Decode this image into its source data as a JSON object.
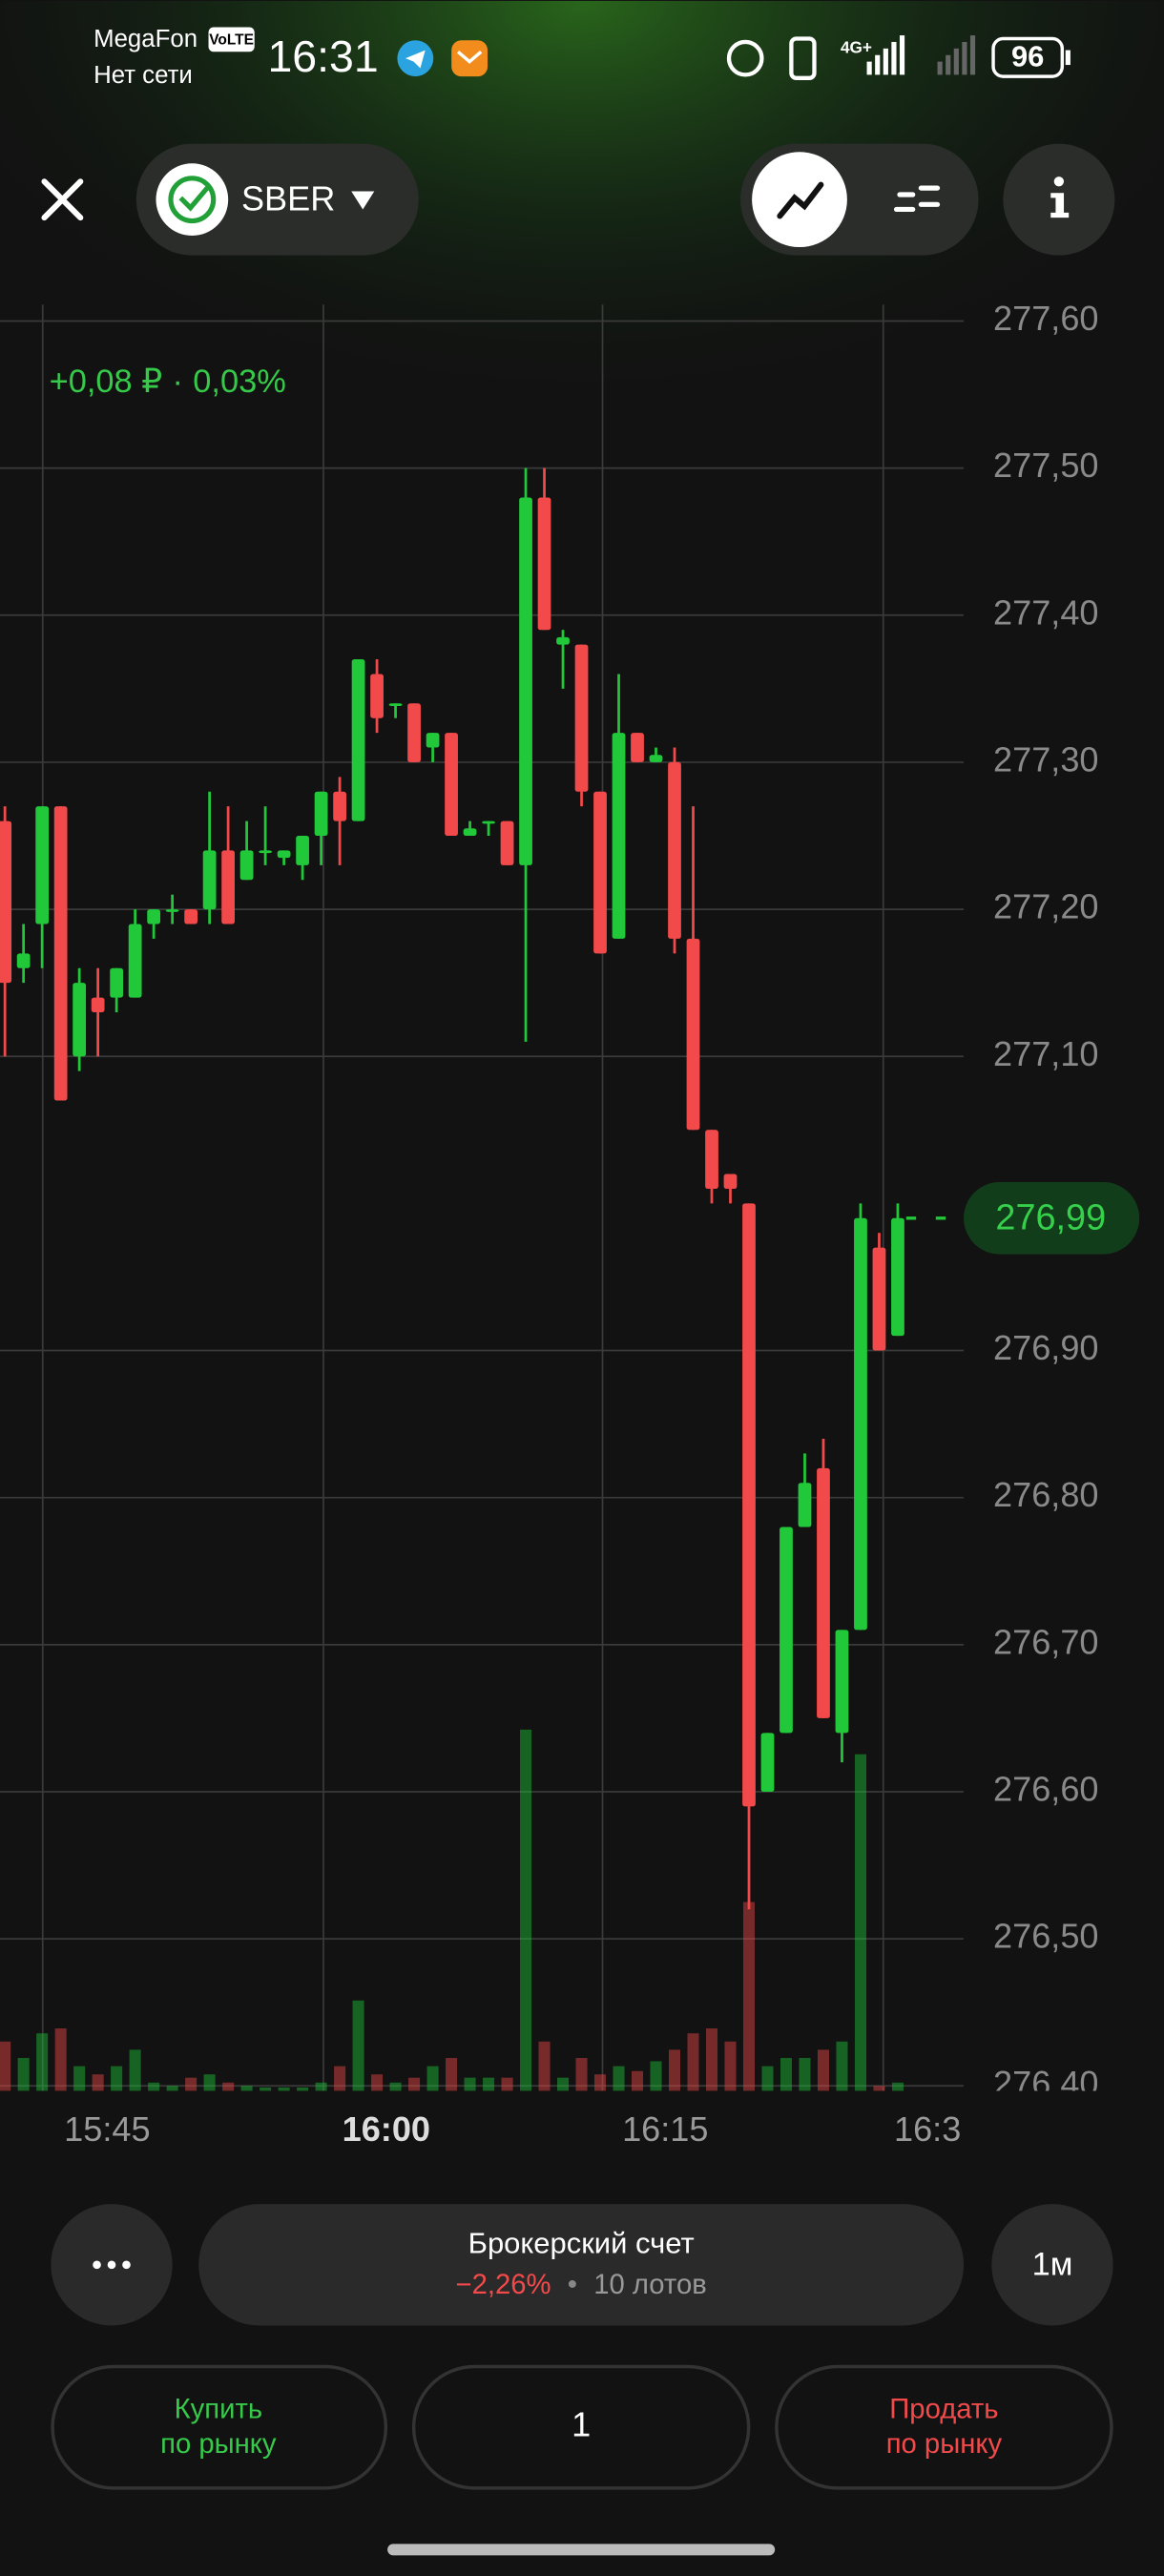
{
  "status_bar": {
    "carrier": "MegaFon",
    "volte": "VoLTE",
    "network": "Нет сети",
    "time": "16:31",
    "signal": "4G+",
    "battery": "96"
  },
  "header": {
    "ticker": "SBER"
  },
  "chart": {
    "type": "candlestick",
    "change_abs": "+0,08 ₽",
    "separator": "·",
    "change_pct": "0,03%",
    "up_color": "#20c83a",
    "down_color": "#f24a4a",
    "open": [
      277.26,
      277.16,
      277.19,
      277.27,
      277.1,
      277.14,
      277.14,
      277.14,
      277.19,
      277.2,
      277.2,
      277.2,
      277.24,
      277.22,
      277.24,
      277.235,
      277.23,
      277.25,
      277.28,
      277.26,
      277.36,
      277.34,
      277.34,
      277.31,
      277.32,
      277.25,
      277.26,
      277.26,
      277.23,
      277.48,
      277.38,
      277.38,
      277.28,
      277.18,
      277.32,
      277.3,
      277.3,
      277.18,
      277.05,
      277.02,
      277.0,
      276.6,
      276.64,
      276.78,
      276.82,
      276.64,
      276.71,
      276.97,
      276.91
    ],
    "high": [
      277.27,
      277.19,
      277.27,
      277.27,
      277.16,
      277.16,
      277.16,
      277.2,
      277.2,
      277.21,
      277.2,
      277.28,
      277.27,
      277.26,
      277.27,
      277.24,
      277.25,
      277.28,
      277.29,
      277.37,
      277.37,
      277.34,
      277.34,
      277.32,
      277.32,
      277.26,
      277.26,
      277.26,
      277.5,
      277.5,
      277.39,
      277.38,
      277.28,
      277.36,
      277.32,
      277.31,
      277.31,
      277.27,
      277.05,
      277.02,
      277.0,
      276.64,
      276.78,
      276.83,
      276.84,
      276.71,
      277.0,
      276.98,
      277.0
    ],
    "low": [
      277.1,
      277.15,
      277.16,
      277.07,
      277.09,
      277.1,
      277.13,
      277.14,
      277.18,
      277.19,
      277.19,
      277.19,
      277.19,
      277.22,
      277.23,
      277.23,
      277.22,
      277.23,
      277.23,
      277.26,
      277.32,
      277.33,
      277.3,
      277.3,
      277.25,
      277.25,
      277.25,
      277.23,
      277.11,
      277.39,
      277.35,
      277.27,
      277.17,
      277.18,
      277.3,
      277.3,
      277.17,
      277.05,
      277.0,
      277.0,
      276.52,
      276.6,
      276.64,
      276.78,
      276.65,
      276.62,
      276.71,
      276.9,
      276.91
    ],
    "close": [
      277.15,
      277.17,
      277.27,
      277.07,
      277.15,
      277.13,
      277.16,
      277.19,
      277.2,
      277.2,
      277.19,
      277.24,
      277.19,
      277.24,
      277.24,
      277.24,
      277.25,
      277.28,
      277.26,
      277.37,
      277.33,
      277.34,
      277.3,
      277.32,
      277.25,
      277.255,
      277.26,
      277.23,
      277.48,
      277.39,
      277.385,
      277.28,
      277.17,
      277.32,
      277.3,
      277.305,
      277.18,
      277.05,
      277.01,
      277.01,
      276.59,
      276.64,
      276.78,
      276.81,
      276.65,
      276.71,
      276.99,
      276.9,
      276.99
    ],
    "volume": [
      30,
      20,
      35,
      38,
      15,
      10,
      15,
      25,
      5,
      3,
      8,
      10,
      5,
      3,
      2,
      2,
      2,
      5,
      15,
      55,
      10,
      5,
      8,
      15,
      20,
      8,
      8,
      8,
      220,
      30,
      8,
      20,
      10,
      15,
      12,
      18,
      25,
      35,
      38,
      30,
      115,
      15,
      20,
      20,
      25,
      30,
      205,
      3,
      5
    ],
    "last_price": {
      "value": 276.99,
      "label": "276,99"
    },
    "ylim": [
      276.4,
      277.6
    ],
    "yticks": [
      {
        "value": 277.6,
        "label": "277,60"
      },
      {
        "value": 277.5,
        "label": "277,50"
      },
      {
        "value": 277.4,
        "label": "277,40"
      },
      {
        "value": 277.3,
        "label": "277,30"
      },
      {
        "value": 277.2,
        "label": "277,20"
      },
      {
        "value": 277.1,
        "label": "277,10"
      },
      {
        "value": 276.9,
        "label": "276,90"
      },
      {
        "value": 276.8,
        "label": "276,80"
      },
      {
        "value": 276.7,
        "label": "276,70"
      },
      {
        "value": 276.6,
        "label": "276,60"
      },
      {
        "value": 276.5,
        "label": "276,50"
      },
      {
        "value": 276.4,
        "label": "276,40"
      }
    ],
    "xticks": [
      {
        "value": 5.5,
        "label": "15:45"
      },
      {
        "value": 20.5,
        "label": "16:00"
      },
      {
        "value": 35.5,
        "label": "16:15"
      },
      {
        "value": 49.6,
        "label": "16:3"
      }
    ],
    "grid": true
  },
  "account": {
    "title": "Брокерский счет",
    "change": "−2,26%",
    "separator": "•",
    "lots": "10 лотов"
  },
  "interval": "1м",
  "buy": [
    "Купить",
    "по рынку"
  ],
  "quantity": "1",
  "sell": [
    "Продать",
    "по рынку"
  ]
}
